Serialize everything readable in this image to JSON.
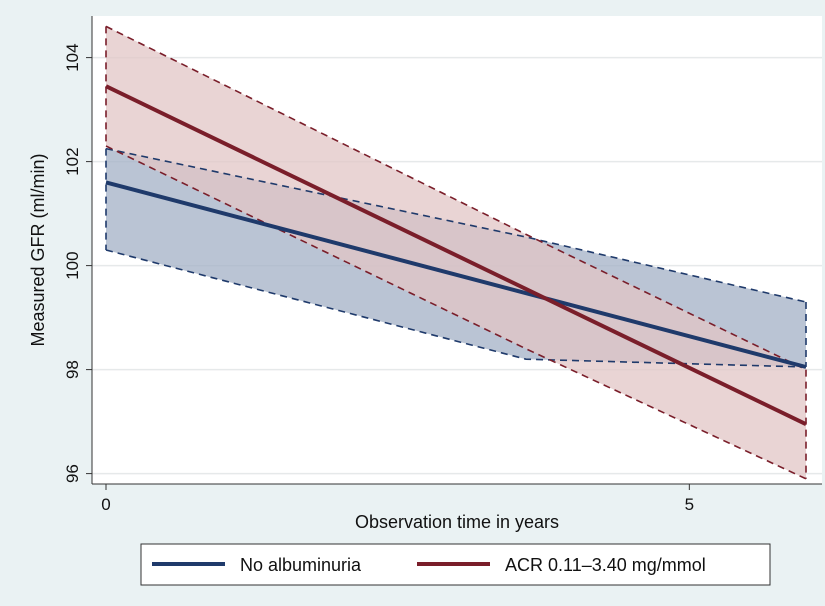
{
  "chart_data": {
    "type": "line",
    "xlabel": "Observation time in years",
    "ylabel": "Measured GFR (ml/min)",
    "xlim": [
      0,
      6.05
    ],
    "ylim": [
      95.8,
      104.8
    ],
    "xticks": [
      0,
      5
    ],
    "yticks": [
      96,
      98,
      100,
      102,
      104
    ],
    "grid": "horizontal",
    "legend_position": "bottom",
    "series": [
      {
        "name": "No albuminuria",
        "color": "#1f3a6b",
        "band_color": "#a3b0c5",
        "x": [
          0,
          6
        ],
        "y": [
          101.6,
          98.05
        ],
        "ci_lower": [
          100.3,
          98.2,
          98.05
        ],
        "ci_upper": [
          102.25,
          100.55,
          99.3
        ],
        "ci_x": [
          0,
          3.6,
          6
        ]
      },
      {
        "name": "ACR 0.11–3.40 mg/mmol",
        "color": "#7a1e2a",
        "band_color": "#e2c6c6",
        "x": [
          0,
          6
        ],
        "y": [
          103.45,
          96.95
        ],
        "ci_lower": [
          102.3,
          98.4,
          95.9
        ],
        "ci_upper": [
          104.6,
          100.6,
          98.0
        ],
        "ci_x": [
          0,
          3.6,
          6
        ]
      }
    ]
  }
}
